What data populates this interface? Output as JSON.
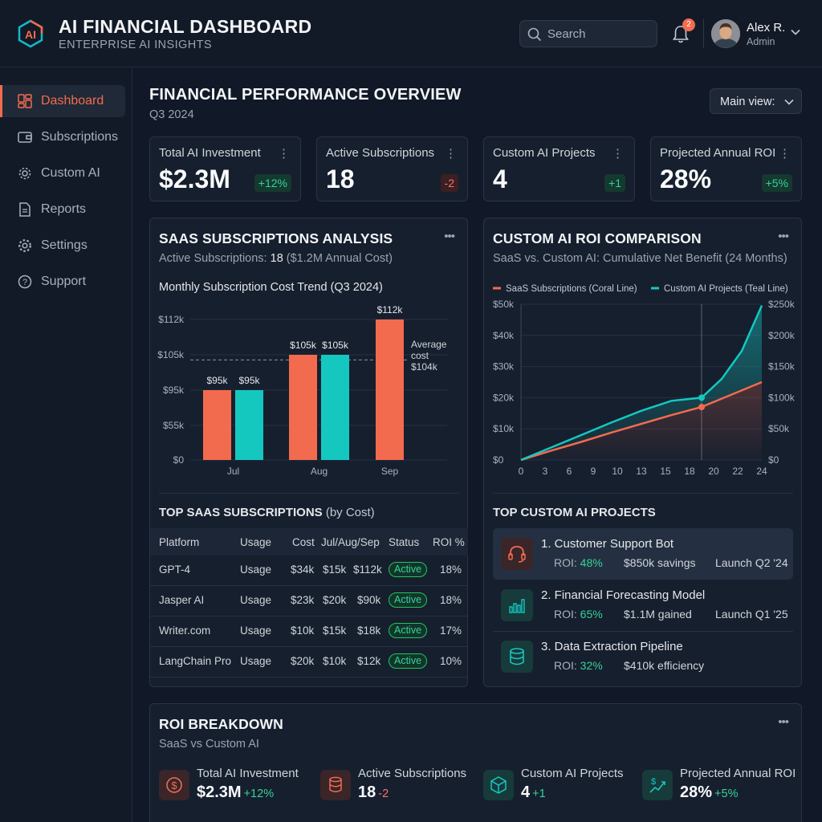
{
  "header": {
    "logo_text": "AI",
    "title": "AI FINANCIAL DASHBOARD",
    "subtitle": "ENTERPRISE AI INSIGHTS",
    "search_placeholder": "Search",
    "notification_count": "2",
    "user_name": "Alex R.",
    "user_role": "Admin"
  },
  "sidebar": {
    "items": [
      {
        "label": "Dashboard",
        "icon": "dashboard-icon",
        "active": true
      },
      {
        "label": "Subscriptions",
        "icon": "wallet-icon",
        "active": false
      },
      {
        "label": "Custom AI",
        "icon": "chip-icon",
        "active": false
      },
      {
        "label": "Reports",
        "icon": "document-icon",
        "active": false
      },
      {
        "label": "Settings",
        "icon": "gear-icon",
        "active": false
      },
      {
        "label": "Support",
        "icon": "help-icon",
        "active": false
      }
    ]
  },
  "page": {
    "title": "FINANCIAL PERFORMANCE OVERVIEW",
    "period": "Q3 2024",
    "view_select": "Main view:"
  },
  "kpis": [
    {
      "label": "Total AI Investment",
      "value": "$2.3M",
      "delta": "+12%",
      "trend": "up"
    },
    {
      "label": "Active Subscriptions",
      "value": "18",
      "delta": "-2",
      "trend": "down"
    },
    {
      "label": "Custom AI Projects",
      "value": "4",
      "delta": "+1",
      "trend": "up"
    },
    {
      "label": "Projected Annual ROI",
      "value": "28%",
      "delta": "+5%",
      "trend": "up"
    }
  ],
  "saas": {
    "title": "SAAS SUBSCRIPTIONS ANALYSIS",
    "subtitle_prefix": "Active Subscriptions: ",
    "subtitle_count": "18",
    "subtitle_suffix": " ($1.2M Annual Cost)",
    "chart_title": "Monthly Subscription Cost Trend (Q3 2024)",
    "top_title": "TOP SAAS SUBSCRIPTIONS",
    "top_title_suffix": " (by Cost)",
    "columns": [
      "Platform",
      "Usage",
      "Cost",
      "Jul/Aug/Sep",
      "Status",
      "ROI %"
    ],
    "rows": [
      {
        "platform": "GPT-4",
        "usage": "Usage",
        "cost": "$34k",
        "jul": "$15k",
        "sep": "$112k",
        "status": "Active",
        "roi": "18%"
      },
      {
        "platform": "Jasper AI",
        "usage": "Usage",
        "cost": "$23k",
        "jul": "$20k",
        "sep": "$90k",
        "status": "Active",
        "roi": "18%"
      },
      {
        "platform": "Writer.com",
        "usage": "Usage",
        "cost": "$10k",
        "jul": "$15k",
        "sep": "$18k",
        "status": "Active",
        "roi": "17%"
      },
      {
        "platform": "LangChain Pro",
        "usage": "Usage",
        "cost": "$20k",
        "jul": "$10k",
        "sep": "$12k",
        "status": "Active",
        "roi": "10%"
      }
    ]
  },
  "custom": {
    "title": "CUSTOM AI ROI COMPARISON",
    "subtitle": "SaaS vs. Custom AI: Cumulative Net Benefit (24 Months)",
    "top_title": "TOP CUSTOM AI PROJECTS",
    "roi_prefix": "ROI: ",
    "projects": [
      {
        "name": "1. Customer Support Bot",
        "roi": "48%",
        "value": "$850k savings",
        "launch": "Launch Q2 '24",
        "icon": "headset-icon"
      },
      {
        "name": "2. Financial Forecasting Model",
        "roi": "65%",
        "value": "$1.1M gained",
        "launch": "Launch Q1 '25",
        "icon": "bar-chart-icon"
      },
      {
        "name": "3. Data Extraction Pipeline",
        "roi": "32%",
        "value": "$410k efficiency",
        "launch": "",
        "icon": "database-icon"
      }
    ]
  },
  "roi_breakdown": {
    "title": "ROI BREAKDOWN",
    "subtitle": "SaaS vs Custom AI",
    "items": [
      {
        "label": "Total AI Investment",
        "value": "$2.3M",
        "delta": "+12%",
        "trend": "up",
        "icon": "dollar-icon",
        "color": "#f26b4f"
      },
      {
        "label": "Active Subscriptions",
        "value": "18",
        "delta": "-2",
        "trend": "down",
        "icon": "database-icon",
        "color": "#f26b4f"
      },
      {
        "label": "Custom AI Projects",
        "value": "4",
        "delta": "+1",
        "trend": "up",
        "icon": "cube-icon",
        "color": "#14b8a6"
      },
      {
        "label": "Projected Annual ROI",
        "value": "28%",
        "delta": "+5%",
        "trend": "up",
        "icon": "growth-icon",
        "color": "#14b8a6"
      }
    ]
  },
  "colors": {
    "coral": "#f26b4f",
    "teal": "#14c8c0",
    "background": "#111827"
  },
  "chart_data": [
    {
      "type": "bar",
      "title": "Monthly Subscription Cost Trend (Q3 2024)",
      "categories": [
        "Jul",
        "Aug",
        "Sep"
      ],
      "series": [
        {
          "color": "#f26b4f",
          "values": [
            95,
            105,
            112
          ]
        },
        {
          "color": "#14c8c0",
          "values": [
            95,
            105,
            null
          ]
        }
      ],
      "y_ticks": [
        "$0",
        "$55k",
        "$95k",
        "$105k",
        "$112k"
      ],
      "reference_line": {
        "value": 104,
        "label": [
          "Average",
          "cost",
          "$104k"
        ]
      },
      "units": "$k"
    },
    {
      "type": "line",
      "x_ticks": [
        0,
        3,
        6,
        9,
        10,
        13,
        15,
        18,
        20,
        22,
        24
      ],
      "y_left_ticks": [
        "$0",
        "$10k",
        "$20k",
        "$30k",
        "$40k",
        "$50k"
      ],
      "y_right_ticks": [
        "$0",
        "$50k",
        "$100k",
        "$150k",
        "$200k",
        "$250k"
      ],
      "marker_x": 18,
      "series": [
        {
          "name": "SaaS Subscriptions (Coral Line)",
          "color": "#f26b4f",
          "axis": "right",
          "x": [
            0,
            3,
            6,
            9,
            12,
            15,
            18,
            21,
            24
          ],
          "y": [
            0,
            15,
            29,
            44,
            58,
            72,
            85,
            105,
            125
          ]
        },
        {
          "name": "Custom AI Projects (Teal Line)",
          "color": "#14c8c0",
          "axis": "right",
          "x": [
            0,
            3,
            6,
            9,
            12,
            15,
            18,
            20,
            22,
            24
          ],
          "y": [
            0,
            20,
            40,
            60,
            79,
            95,
            100,
            130,
            175,
            248
          ]
        }
      ]
    }
  ]
}
